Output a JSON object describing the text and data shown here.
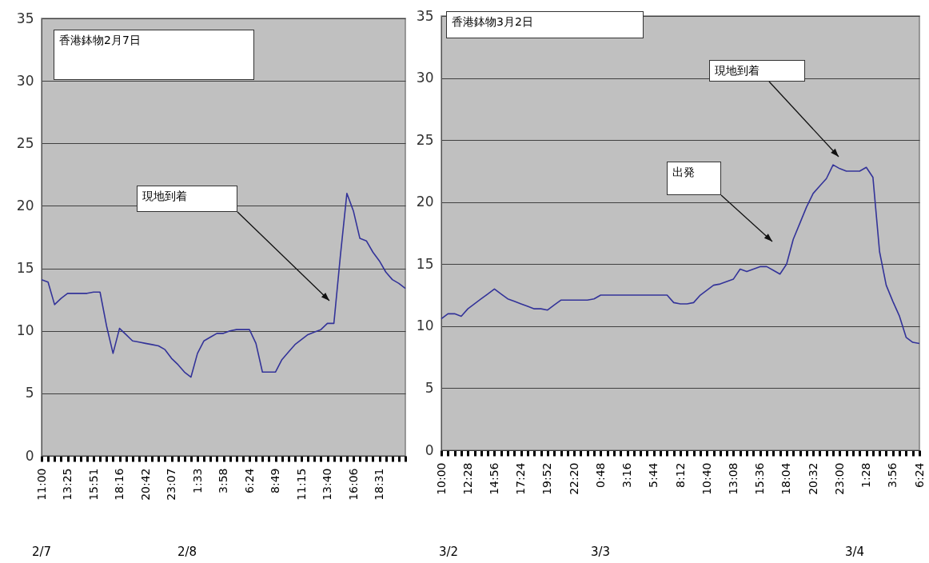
{
  "chart_data": [
    {
      "type": "line",
      "categories": [
        "11:00",
        null,
        null,
        null,
        "13:25",
        null,
        null,
        null,
        "15:51",
        null,
        null,
        null,
        "18:16",
        null,
        null,
        null,
        "20:42",
        null,
        null,
        null,
        "23:07",
        null,
        null,
        null,
        "1:33",
        null,
        null,
        null,
        "3:58",
        null,
        null,
        null,
        "6:24",
        null,
        null,
        null,
        "8:49",
        null,
        null,
        null,
        "11:15",
        null,
        null,
        null,
        "13:40",
        null,
        null,
        null,
        "16:06",
        null,
        null,
        null,
        "18:31",
        null,
        null,
        null,
        null
      ],
      "values": [
        14.1,
        13.9,
        12.1,
        12.6,
        13.0,
        13.0,
        13.0,
        13.0,
        13.1,
        13.1,
        10.4,
        8.2,
        10.2,
        9.7,
        9.2,
        9.1,
        9.0,
        8.9,
        8.8,
        8.5,
        7.8,
        7.3,
        6.7,
        6.3,
        8.2,
        9.2,
        9.5,
        9.8,
        9.8,
        10.0,
        10.1,
        10.1,
        10.1,
        9.0,
        6.7,
        6.7,
        6.7,
        7.7,
        8.3,
        8.9,
        9.3,
        9.7,
        9.9,
        10.1,
        10.6,
        10.6,
        16.0,
        21.0,
        19.6,
        17.4,
        17.2,
        16.3,
        15.6,
        14.7,
        14.1,
        13.8,
        13.4
      ],
      "color": "#333399",
      "ylim": [
        0,
        35
      ],
      "yticks": [
        0,
        5,
        10,
        15,
        20,
        25,
        30,
        35
      ],
      "grid": "y",
      "annotations": [
        "香港鉢物2月7日",
        "現地到着",
        "2/7",
        "2/8"
      ]
    },
    {
      "type": "line",
      "categories": [
        "10:00",
        null,
        null,
        null,
        "12:28",
        null,
        null,
        null,
        "14:56",
        null,
        null,
        null,
        "17:24",
        null,
        null,
        null,
        "19:52",
        null,
        null,
        null,
        "22:20",
        null,
        null,
        null,
        "0:48",
        null,
        null,
        null,
        "3:16",
        null,
        null,
        null,
        "5:44",
        null,
        null,
        null,
        "8:12",
        null,
        null,
        null,
        "10:40",
        null,
        null,
        null,
        "13:08",
        null,
        null,
        null,
        "15:36",
        null,
        null,
        null,
        "18:04",
        null,
        null,
        null,
        "20:32",
        null,
        null,
        null,
        "23:00",
        null,
        null,
        null,
        "1:28",
        null,
        null,
        null,
        "3:56",
        null,
        null,
        null,
        "6:24"
      ],
      "values": [
        10.6,
        11.0,
        11.0,
        10.8,
        11.4,
        11.8,
        12.2,
        12.6,
        13.0,
        12.6,
        12.2,
        12.0,
        11.8,
        11.6,
        11.4,
        11.4,
        11.3,
        11.7,
        12.1,
        12.1,
        12.1,
        12.1,
        12.1,
        12.2,
        12.5,
        12.5,
        12.5,
        12.5,
        12.5,
        12.5,
        12.5,
        12.5,
        12.5,
        12.5,
        12.5,
        11.9,
        11.8,
        11.8,
        11.9,
        12.5,
        12.9,
        13.3,
        13.4,
        13.6,
        13.8,
        14.6,
        14.4,
        14.6,
        14.8,
        14.8,
        14.5,
        14.2,
        15.0,
        17.0,
        18.3,
        19.6,
        20.7,
        21.3,
        21.9,
        23.0,
        22.7,
        22.5,
        22.5,
        22.5,
        22.8,
        22.0,
        16.0,
        13.3,
        12.0,
        10.8,
        9.1,
        8.7,
        8.6
      ],
      "color": "#333399",
      "ylim": [
        0,
        35
      ],
      "yticks": [
        0,
        5,
        10,
        15,
        20,
        25,
        30,
        35
      ],
      "grid": "y",
      "annotations": [
        "香港鉢物3月2日",
        "現地到着",
        "出発",
        "3/2",
        "3/3",
        "3/4"
      ]
    }
  ]
}
